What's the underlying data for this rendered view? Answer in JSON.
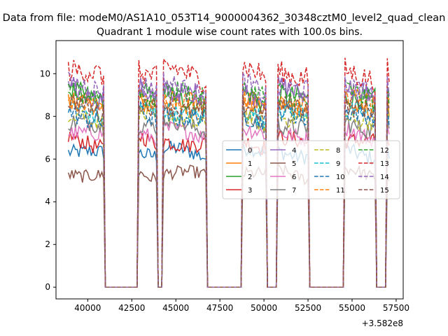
{
  "chart_data": {
    "type": "line",
    "suptitle": "Data from file: modeM0/AS1A10_053T14_9000004362_30348cztM0_level2_quad_clean",
    "title": "Quadrant 1 module wise count rates with 100.0s bins.",
    "xlabel": "",
    "ylabel": "",
    "x_offset_label": "+3.582e8",
    "xlim": [
      38200,
      57900
    ],
    "ylim": [
      -0.55,
      11.55
    ],
    "xticks": [
      40000,
      42500,
      45000,
      47500,
      50000,
      52500,
      55000,
      57500
    ],
    "xtick_labels": [
      "40000",
      "42500",
      "45000",
      "47500",
      "50000",
      "52500",
      "55000",
      "57500"
    ],
    "yticks": [
      0,
      2,
      4,
      6,
      8,
      10
    ],
    "ytick_labels": [
      "0",
      "2",
      "4",
      "6",
      "8",
      "10"
    ],
    "grid": false,
    "legend_position": "center-right",
    "segments": [
      {
        "start": 38900,
        "end": 40900
      },
      {
        "start": 42900,
        "end": 43900
      },
      {
        "start": 44300,
        "end": 46700
      },
      {
        "start": 48800,
        "end": 50100
      },
      {
        "start": 50800,
        "end": 52500
      },
      {
        "start": 54600,
        "end": 56300
      },
      {
        "start": 57000,
        "end": 57100
      }
    ],
    "gap_value": 0,
    "bin_seconds": 100,
    "series": [
      {
        "name": "0",
        "mean": 6.3,
        "dash": "solid",
        "color": "#1f77b4"
      },
      {
        "name": "1",
        "mean": 8.5,
        "dash": "solid",
        "color": "#ff7f0e"
      },
      {
        "name": "2",
        "mean": 8.9,
        "dash": "solid",
        "color": "#2ca02c"
      },
      {
        "name": "3",
        "mean": 6.8,
        "dash": "solid",
        "color": "#d62728"
      },
      {
        "name": "4",
        "mean": 9.1,
        "dash": "solid",
        "color": "#9467bd"
      },
      {
        "name": "5",
        "mean": 5.3,
        "dash": "solid",
        "color": "#8c564b"
      },
      {
        "name": "6",
        "mean": 7.2,
        "dash": "solid",
        "color": "#e377c2"
      },
      {
        "name": "7",
        "mean": 7.6,
        "dash": "solid",
        "color": "#7f7f7f"
      },
      {
        "name": "8",
        "mean": 7.9,
        "dash": "dashed",
        "color": "#bcbd22"
      },
      {
        "name": "9",
        "mean": 8.2,
        "dash": "dashed",
        "color": "#17becf"
      },
      {
        "name": "10",
        "mean": 8.0,
        "dash": "dashed",
        "color": "#1f77b4"
      },
      {
        "name": "11",
        "mean": 8.7,
        "dash": "dashed",
        "color": "#ff7f0e"
      },
      {
        "name": "12",
        "mean": 9.0,
        "dash": "dashed",
        "color": "#2ca02c"
      },
      {
        "name": "13",
        "mean": 10.0,
        "dash": "dashed",
        "color": "#d62728"
      },
      {
        "name": "14",
        "mean": 9.3,
        "dash": "dashed",
        "color": "#9467bd"
      },
      {
        "name": "15",
        "mean": 8.4,
        "dash": "dashed",
        "color": "#8c564b"
      }
    ]
  }
}
